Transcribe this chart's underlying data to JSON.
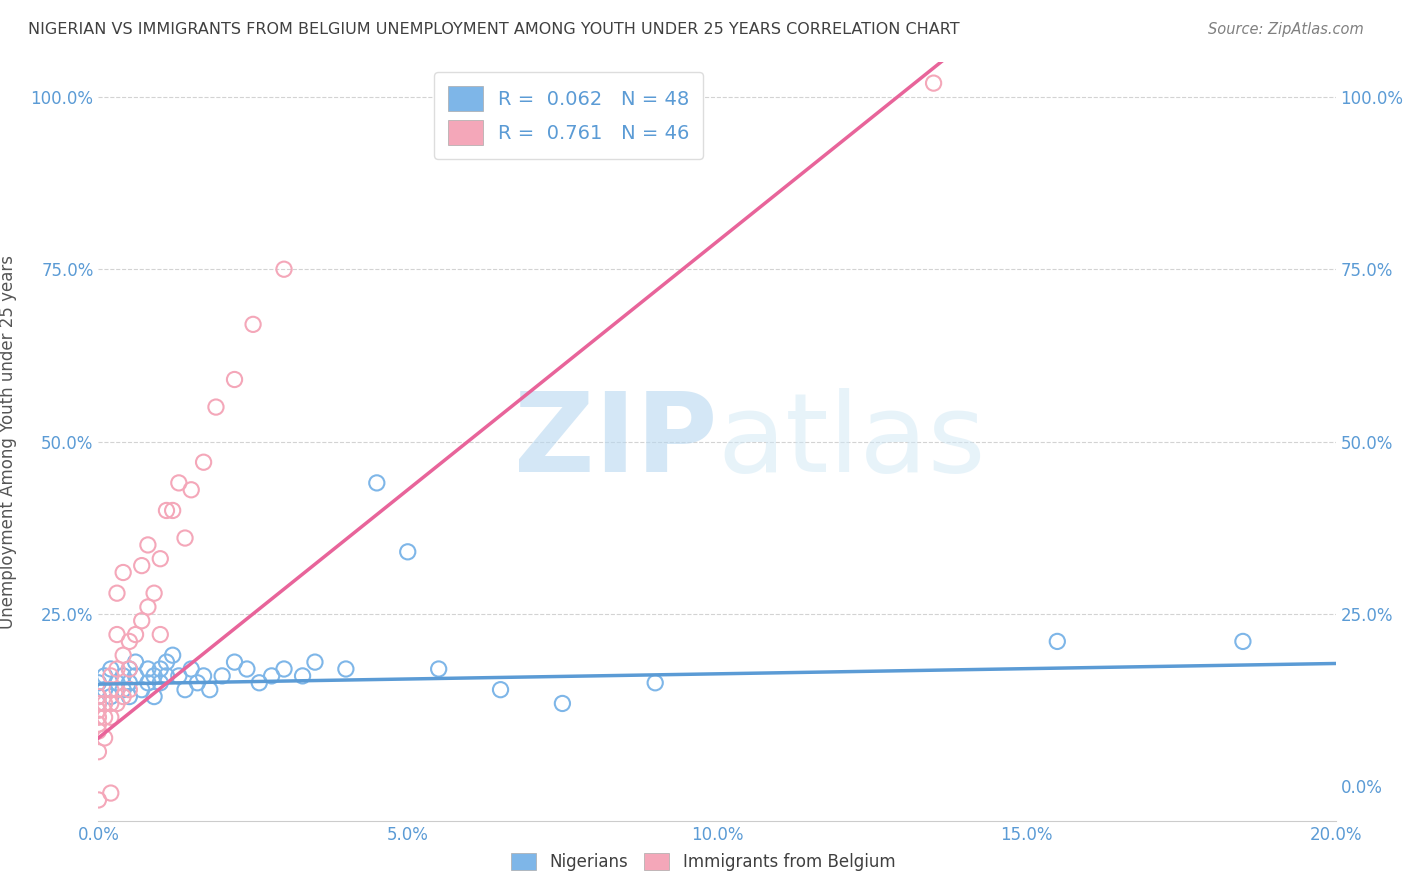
{
  "title": "NIGERIAN VS IMMIGRANTS FROM BELGIUM UNEMPLOYMENT AMONG YOUTH UNDER 25 YEARS CORRELATION CHART",
  "source": "Source: ZipAtlas.com",
  "ylabel": "Unemployment Among Youth under 25 years",
  "xlim": [
    0.0,
    0.2
  ],
  "ylim": [
    -0.05,
    1.05
  ],
  "xtick_labels": [
    "0.0%",
    "",
    "5.0%",
    "",
    "10.0%",
    "",
    "15.0%",
    "",
    "20.0%"
  ],
  "xtick_vals": [
    0.0,
    0.025,
    0.05,
    0.075,
    0.1,
    0.125,
    0.15,
    0.175,
    0.2
  ],
  "ytick_labels": [
    "25.0%",
    "50.0%",
    "75.0%",
    "100.0%"
  ],
  "ytick_vals": [
    0.25,
    0.5,
    0.75,
    1.0
  ],
  "ytick_right_labels": [
    "0.0%",
    "25.0%",
    "50.0%",
    "75.0%",
    "100.0%"
  ],
  "ytick_right_vals": [
    0.0,
    0.25,
    0.5,
    0.75,
    1.0
  ],
  "color_nigerian": "#7EB6E8",
  "color_belgium": "#F4A7B9",
  "color_line_nigerian": "#5B9BD5",
  "color_line_belgium": "#E8649A",
  "color_axis_blue": "#5B9BD5",
  "color_title": "#404040",
  "color_source": "#808080",
  "watermark_zip": "ZIP",
  "watermark_atlas": "atlas",
  "r_nigerian": 0.062,
  "r_belgium": 0.761,
  "n_nigerian": 48,
  "n_belgium": 46,
  "scatter_nigerian_x": [
    0.0,
    0.0,
    0.0,
    0.001,
    0.001,
    0.002,
    0.002,
    0.003,
    0.004,
    0.004,
    0.005,
    0.005,
    0.005,
    0.006,
    0.006,
    0.007,
    0.008,
    0.008,
    0.009,
    0.009,
    0.01,
    0.01,
    0.011,
    0.011,
    0.012,
    0.013,
    0.014,
    0.015,
    0.016,
    0.017,
    0.018,
    0.02,
    0.022,
    0.024,
    0.026,
    0.028,
    0.03,
    0.033,
    0.035,
    0.04,
    0.045,
    0.05,
    0.055,
    0.065,
    0.075,
    0.09,
    0.155,
    0.185
  ],
  "scatter_nigerian_y": [
    0.13,
    0.15,
    0.12,
    0.14,
    0.16,
    0.13,
    0.17,
    0.15,
    0.14,
    0.16,
    0.13,
    0.15,
    0.17,
    0.16,
    0.18,
    0.14,
    0.15,
    0.17,
    0.13,
    0.16,
    0.15,
    0.17,
    0.16,
    0.18,
    0.19,
    0.16,
    0.14,
    0.17,
    0.15,
    0.16,
    0.14,
    0.16,
    0.18,
    0.17,
    0.15,
    0.16,
    0.17,
    0.16,
    0.18,
    0.17,
    0.44,
    0.34,
    0.17,
    0.14,
    0.12,
    0.15,
    0.21,
    0.21
  ],
  "scatter_belgium_x": [
    0.0,
    0.0,
    0.0,
    0.0,
    0.0,
    0.0,
    0.0,
    0.0,
    0.001,
    0.001,
    0.001,
    0.002,
    0.002,
    0.002,
    0.002,
    0.002,
    0.003,
    0.003,
    0.003,
    0.003,
    0.003,
    0.004,
    0.004,
    0.004,
    0.005,
    0.005,
    0.005,
    0.006,
    0.007,
    0.007,
    0.008,
    0.008,
    0.009,
    0.01,
    0.01,
    0.011,
    0.012,
    0.013,
    0.014,
    0.015,
    0.017,
    0.019,
    0.022,
    0.025,
    0.03,
    0.135
  ],
  "scatter_belgium_y": [
    0.05,
    0.08,
    0.09,
    0.1,
    0.11,
    0.12,
    0.13,
    -0.02,
    0.07,
    0.1,
    0.12,
    0.1,
    0.12,
    0.14,
    0.16,
    -0.01,
    0.12,
    0.14,
    0.17,
    0.22,
    0.28,
    0.13,
    0.19,
    0.31,
    0.14,
    0.17,
    0.21,
    0.22,
    0.24,
    0.32,
    0.26,
    0.35,
    0.28,
    0.22,
    0.33,
    0.4,
    0.4,
    0.44,
    0.36,
    0.43,
    0.47,
    0.55,
    0.59,
    0.67,
    0.75,
    1.02
  ],
  "line_nigerian_slope": 0.15,
  "line_nigerian_intercept": 0.148,
  "line_belgium_slope": 7.2,
  "line_belgium_intercept": 0.07
}
